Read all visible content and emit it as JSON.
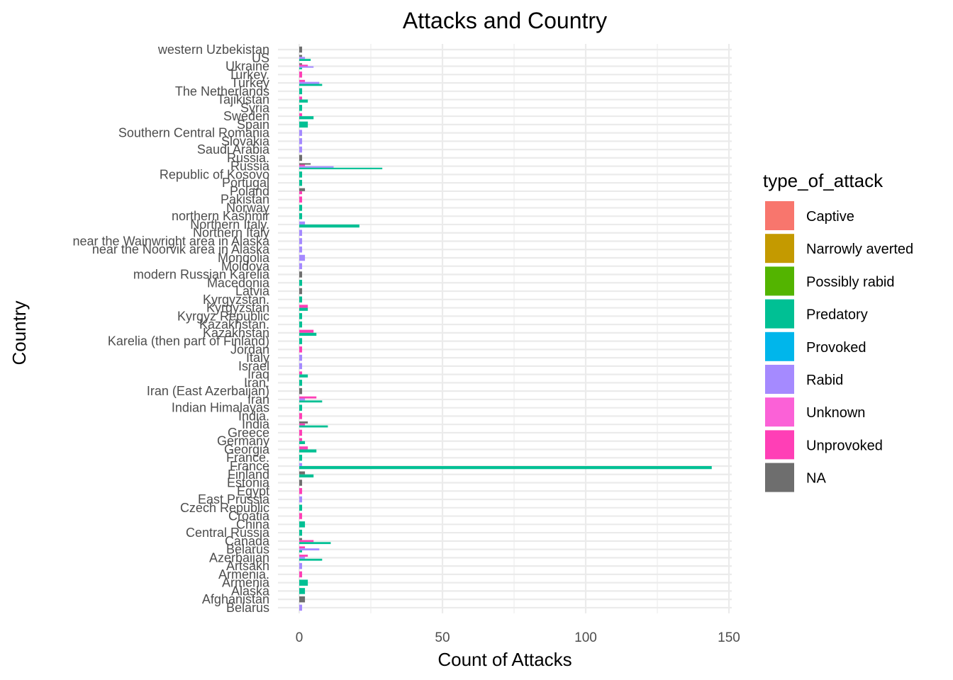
{
  "chart_data": {
    "type": "bar",
    "orientation": "horizontal",
    "stacking": "dodge",
    "title": "Attacks and Country",
    "xlabel": "Count of Attacks",
    "ylabel": "Country",
    "xlim": [
      0,
      150
    ],
    "xticks": [
      0,
      50,
      100,
      150
    ],
    "grid": true,
    "legend": {
      "title": "type_of_attack",
      "position": "right",
      "entries": [
        {
          "label": "Captive",
          "color": "#F8766D"
        },
        {
          "label": "Narrowly averted",
          "color": "#C49A00"
        },
        {
          "label": "Possibly rabid",
          "color": "#53B400"
        },
        {
          "label": "Predatory",
          "color": "#00C094"
        },
        {
          "label": "Provoked",
          "color": "#00B6EB"
        },
        {
          "label": "Rabid",
          "color": "#A58AFF"
        },
        {
          "label": "Unknown",
          "color": "#FB61D7"
        },
        {
          "label": "Unprovoked",
          "color": "#FF3FB6"
        },
        {
          "label": "NA",
          "color": "#6E6E6E"
        }
      ]
    },
    "categories": [
      "western Uzbekistan",
      "US",
      "Ukraine",
      "Turkey.",
      "Turkey",
      "The Netherlands",
      "Tajikistan",
      "Syria",
      "Sweden",
      "Spain",
      "Southern Central Romania",
      "Slovakia",
      "Saudi Arabia",
      "Russia.",
      "Russia",
      "Republic of Kosovo",
      "Portugal",
      "Poland",
      "Pakistan",
      "Norway",
      "northern Kashmir",
      "Northern Italy.",
      "Northern Italy",
      "near the Wainwright area in Alaska",
      "near the Noorvik area in Alaska",
      "Mongolia",
      "Moldova",
      "modern Russian Karelia",
      "Macedonia",
      "Latvia",
      "Kyrgyzstan.",
      "Kyrgyzstan",
      "Kyrgyz Republic",
      "Kazakhstan.",
      "Kazakhstan",
      "Karelia (then part of Finland)",
      "Jordan",
      "Italy",
      "Israel",
      "Iraq",
      "Iran.",
      "Iran (East Azerbaijan)",
      "Iran",
      "Indian Himalayas",
      "India.",
      "India",
      "Greece",
      "Germany",
      "Georgia",
      "France.",
      "France",
      "Finland",
      "Estonia",
      "Egypt",
      "East Prussia",
      "Czech Republic",
      "Croatia",
      "China",
      "Central Russia",
      "Canada",
      "Belarus",
      "Azerbaijan",
      "Artsakh",
      "Armenia.",
      "Armenia",
      "Alaska",
      "Afghanistan",
      "Belarus"
    ],
    "bars": [
      {
        "category": "western Uzbekistan",
        "segments": [
          {
            "type": "NA",
            "value": 1
          }
        ]
      },
      {
        "category": "US",
        "segments": [
          {
            "type": "Predatory",
            "value": 4
          },
          {
            "type": "Rabid",
            "value": 2
          },
          {
            "type": "NA",
            "value": 1
          }
        ]
      },
      {
        "category": "Ukraine",
        "segments": [
          {
            "type": "Predatory",
            "value": 1
          },
          {
            "type": "Rabid",
            "value": 5
          },
          {
            "type": "Unprovoked",
            "value": 3
          },
          {
            "type": "NA",
            "value": 1
          }
        ]
      },
      {
        "category": "Turkey.",
        "segments": [
          {
            "type": "Unprovoked",
            "value": 1
          }
        ]
      },
      {
        "category": "Turkey",
        "segments": [
          {
            "type": "Predatory",
            "value": 8
          },
          {
            "type": "Rabid",
            "value": 7
          },
          {
            "type": "Unprovoked",
            "value": 2
          }
        ]
      },
      {
        "category": "The Netherlands",
        "segments": [
          {
            "type": "Predatory",
            "value": 1
          }
        ]
      },
      {
        "category": "Tajikistan",
        "segments": [
          {
            "type": "Predatory",
            "value": 3
          },
          {
            "type": "Unprovoked",
            "value": 1
          }
        ]
      },
      {
        "category": "Syria",
        "segments": [
          {
            "type": "Predatory",
            "value": 1
          }
        ]
      },
      {
        "category": "Sweden",
        "segments": [
          {
            "type": "Predatory",
            "value": 5
          },
          {
            "type": "Unprovoked",
            "value": 1
          }
        ]
      },
      {
        "category": "Spain",
        "segments": [
          {
            "type": "Predatory",
            "value": 3
          }
        ]
      },
      {
        "category": "Southern Central Romania",
        "segments": [
          {
            "type": "Rabid",
            "value": 1
          }
        ]
      },
      {
        "category": "Slovakia",
        "segments": [
          {
            "type": "Rabid",
            "value": 1
          }
        ]
      },
      {
        "category": "Saudi Arabia",
        "segments": [
          {
            "type": "Rabid",
            "value": 1
          }
        ]
      },
      {
        "category": "Russia.",
        "segments": [
          {
            "type": "NA",
            "value": 1
          }
        ]
      },
      {
        "category": "Russia",
        "segments": [
          {
            "type": "Predatory",
            "value": 29
          },
          {
            "type": "Rabid",
            "value": 12
          },
          {
            "type": "Unprovoked",
            "value": 2
          },
          {
            "type": "NA",
            "value": 4
          }
        ]
      },
      {
        "category": "Republic of Kosovo",
        "segments": [
          {
            "type": "Predatory",
            "value": 1
          }
        ]
      },
      {
        "category": "Portugal",
        "segments": [
          {
            "type": "Predatory",
            "value": 1
          }
        ]
      },
      {
        "category": "Poland",
        "segments": [
          {
            "type": "Unprovoked",
            "value": 1
          },
          {
            "type": "NA",
            "value": 2
          }
        ]
      },
      {
        "category": "Pakistan",
        "segments": [
          {
            "type": "Unprovoked",
            "value": 1
          }
        ]
      },
      {
        "category": "Norway",
        "segments": [
          {
            "type": "Predatory",
            "value": 1
          }
        ]
      },
      {
        "category": "northern Kashmir",
        "segments": [
          {
            "type": "Predatory",
            "value": 1
          }
        ]
      },
      {
        "category": "Northern Italy.",
        "segments": [
          {
            "type": "Predatory",
            "value": 21
          },
          {
            "type": "Rabid",
            "value": 2
          }
        ]
      },
      {
        "category": "Northern Italy",
        "segments": [
          {
            "type": "Rabid",
            "value": 1
          }
        ]
      },
      {
        "category": "near the Wainwright area in Alaska",
        "segments": [
          {
            "type": "Rabid",
            "value": 1
          }
        ]
      },
      {
        "category": "near the Noorvik area in Alaska",
        "segments": [
          {
            "type": "Rabid",
            "value": 1
          }
        ]
      },
      {
        "category": "Mongolia",
        "segments": [
          {
            "type": "Rabid",
            "value": 2
          }
        ]
      },
      {
        "category": "Moldova",
        "segments": [
          {
            "type": "Rabid",
            "value": 1
          }
        ]
      },
      {
        "category": "modern Russian Karelia",
        "segments": [
          {
            "type": "NA",
            "value": 1
          }
        ]
      },
      {
        "category": "Macedonia",
        "segments": [
          {
            "type": "Predatory",
            "value": 1
          }
        ]
      },
      {
        "category": "Latvia",
        "segments": [
          {
            "type": "NA",
            "value": 1
          }
        ]
      },
      {
        "category": "Kyrgyzstan.",
        "segments": [
          {
            "type": "Predatory",
            "value": 1
          }
        ]
      },
      {
        "category": "Kyrgyzstan",
        "segments": [
          {
            "type": "Predatory",
            "value": 3
          },
          {
            "type": "Unprovoked",
            "value": 3
          }
        ]
      },
      {
        "category": "Kyrgyz Republic",
        "segments": [
          {
            "type": "Predatory",
            "value": 1
          }
        ]
      },
      {
        "category": "Kazakhstan.",
        "segments": [
          {
            "type": "Predatory",
            "value": 1
          }
        ]
      },
      {
        "category": "Kazakhstan",
        "segments": [
          {
            "type": "Predatory",
            "value": 6
          },
          {
            "type": "Unprovoked",
            "value": 5
          }
        ]
      },
      {
        "category": "Karelia (then part of Finland)",
        "segments": [
          {
            "type": "Predatory",
            "value": 1
          }
        ]
      },
      {
        "category": "Jordan",
        "segments": [
          {
            "type": "Unprovoked",
            "value": 1
          }
        ]
      },
      {
        "category": "Italy",
        "segments": [
          {
            "type": "Rabid",
            "value": 1
          }
        ]
      },
      {
        "category": "Israel",
        "segments": [
          {
            "type": "Rabid",
            "value": 1
          }
        ]
      },
      {
        "category": "Iraq",
        "segments": [
          {
            "type": "Predatory",
            "value": 3
          },
          {
            "type": "Unprovoked",
            "value": 1
          }
        ]
      },
      {
        "category": "Iran.",
        "segments": [
          {
            "type": "Predatory",
            "value": 1
          }
        ]
      },
      {
        "category": "Iran (East Azerbaijan)",
        "segments": [
          {
            "type": "NA",
            "value": 1
          }
        ]
      },
      {
        "category": "Iran",
        "segments": [
          {
            "type": "Predatory",
            "value": 8
          },
          {
            "type": "Rabid",
            "value": 2
          },
          {
            "type": "Unprovoked",
            "value": 6
          }
        ]
      },
      {
        "category": "Indian Himalayas",
        "segments": [
          {
            "type": "Predatory",
            "value": 1
          }
        ]
      },
      {
        "category": "India.",
        "segments": [
          {
            "type": "Unprovoked",
            "value": 1
          }
        ]
      },
      {
        "category": "India",
        "segments": [
          {
            "type": "Predatory",
            "value": 10
          },
          {
            "type": "Unprovoked",
            "value": 2
          },
          {
            "type": "NA",
            "value": 3
          }
        ]
      },
      {
        "category": "Greece",
        "segments": [
          {
            "type": "Unprovoked",
            "value": 1
          }
        ]
      },
      {
        "category": "Germany",
        "segments": [
          {
            "type": "Predatory",
            "value": 2
          },
          {
            "type": "Unprovoked",
            "value": 1
          }
        ]
      },
      {
        "category": "Georgia",
        "segments": [
          {
            "type": "Predatory",
            "value": 6
          },
          {
            "type": "Unprovoked",
            "value": 3
          }
        ]
      },
      {
        "category": "France.",
        "segments": [
          {
            "type": "Predatory",
            "value": 1
          }
        ]
      },
      {
        "category": "France",
        "segments": [
          {
            "type": "Predatory",
            "value": 144
          },
          {
            "type": "Rabid",
            "value": 1
          }
        ]
      },
      {
        "category": "Finland",
        "segments": [
          {
            "type": "Predatory",
            "value": 5
          },
          {
            "type": "NA",
            "value": 2
          }
        ]
      },
      {
        "category": "Estonia",
        "segments": [
          {
            "type": "NA",
            "value": 1
          }
        ]
      },
      {
        "category": "Egypt",
        "segments": [
          {
            "type": "Unprovoked",
            "value": 1
          }
        ]
      },
      {
        "category": "East Prussia",
        "segments": [
          {
            "type": "Rabid",
            "value": 1
          }
        ]
      },
      {
        "category": "Czech Republic",
        "segments": [
          {
            "type": "Predatory",
            "value": 1
          }
        ]
      },
      {
        "category": "Croatia",
        "segments": [
          {
            "type": "Unprovoked",
            "value": 1
          }
        ]
      },
      {
        "category": "China",
        "segments": [
          {
            "type": "Predatory",
            "value": 2
          }
        ]
      },
      {
        "category": "Central Russia",
        "segments": [
          {
            "type": "Predatory",
            "value": 1
          }
        ]
      },
      {
        "category": "Canada",
        "segments": [
          {
            "type": "Predatory",
            "value": 11
          },
          {
            "type": "Unprovoked",
            "value": 5
          },
          {
            "type": "NA",
            "value": 1
          }
        ]
      },
      {
        "category": "Belarus",
        "segments": [
          {
            "type": "Predatory",
            "value": 1
          },
          {
            "type": "Rabid",
            "value": 7
          },
          {
            "type": "Unprovoked",
            "value": 2
          }
        ]
      },
      {
        "category": "Azerbaijan",
        "segments": [
          {
            "type": "Predatory",
            "value": 8
          },
          {
            "type": "Rabid",
            "value": 2
          },
          {
            "type": "Unprovoked",
            "value": 3
          }
        ]
      },
      {
        "category": "Artsakh",
        "segments": [
          {
            "type": "Rabid",
            "value": 1
          }
        ]
      },
      {
        "category": "Armenia.",
        "segments": [
          {
            "type": "Unprovoked",
            "value": 1
          }
        ]
      },
      {
        "category": "Armenia",
        "segments": [
          {
            "type": "Predatory",
            "value": 3
          }
        ]
      },
      {
        "category": "Alaska",
        "segments": [
          {
            "type": "Predatory",
            "value": 2
          }
        ]
      },
      {
        "category": "Afghanistan",
        "segments": [
          {
            "type": "NA",
            "value": 2
          }
        ]
      },
      {
        "category": "Belarus",
        "segments": [
          {
            "type": "Rabid",
            "value": 1
          }
        ]
      }
    ]
  }
}
